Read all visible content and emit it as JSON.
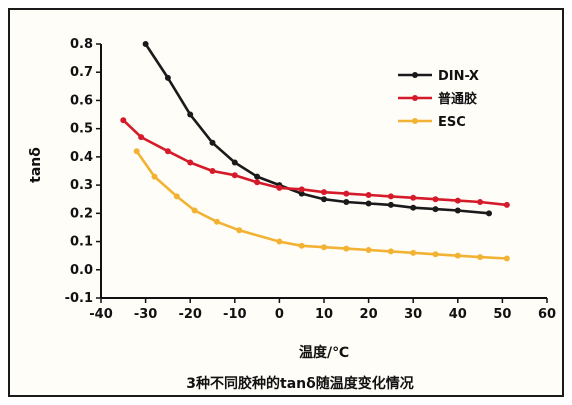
{
  "chart_data": {
    "type": "line",
    "title": "3种不同胶种的tanδ随温度变化情况",
    "xlabel": "温度/℃",
    "ylabel": "tanδ",
    "xlim": [
      -40,
      60
    ],
    "ylim": [
      -0.1,
      0.8
    ],
    "xticks": [
      -40,
      -30,
      -20,
      -10,
      0,
      10,
      20,
      30,
      40,
      50,
      60
    ],
    "yticks": [
      -0.1,
      0.0,
      0.1,
      0.2,
      0.3,
      0.4,
      0.5,
      0.6,
      0.7,
      0.8
    ],
    "grid": false,
    "legend_position": "top-right",
    "series": [
      {
        "name": "DIN-X",
        "color": "#1a1a1a",
        "x": [
          -30,
          -25,
          -20,
          -15,
          -10,
          -5,
          0,
          5,
          10,
          15,
          20,
          25,
          30,
          35,
          40,
          47
        ],
        "y": [
          0.8,
          0.68,
          0.55,
          0.45,
          0.38,
          0.33,
          0.3,
          0.27,
          0.25,
          0.24,
          0.235,
          0.23,
          0.22,
          0.215,
          0.21,
          0.2
        ]
      },
      {
        "name": "普通胶",
        "color": "#d51a2a",
        "x": [
          -35,
          -31,
          -25,
          -20,
          -15,
          -10,
          -5,
          0,
          5,
          10,
          15,
          20,
          25,
          30,
          35,
          40,
          45,
          51
        ],
        "y": [
          0.53,
          0.47,
          0.42,
          0.38,
          0.35,
          0.335,
          0.31,
          0.29,
          0.285,
          0.275,
          0.27,
          0.265,
          0.26,
          0.255,
          0.25,
          0.245,
          0.24,
          0.23
        ]
      },
      {
        "name": "ESC",
        "color": "#f2b233",
        "x": [
          -32,
          -28,
          -23,
          -19,
          -14,
          -9,
          0,
          5,
          10,
          15,
          20,
          25,
          30,
          35,
          40,
          45,
          51
        ],
        "y": [
          0.42,
          0.33,
          0.26,
          0.21,
          0.17,
          0.14,
          0.1,
          0.085,
          0.08,
          0.075,
          0.07,
          0.065,
          0.06,
          0.055,
          0.05,
          0.045,
          0.04
        ]
      }
    ]
  }
}
